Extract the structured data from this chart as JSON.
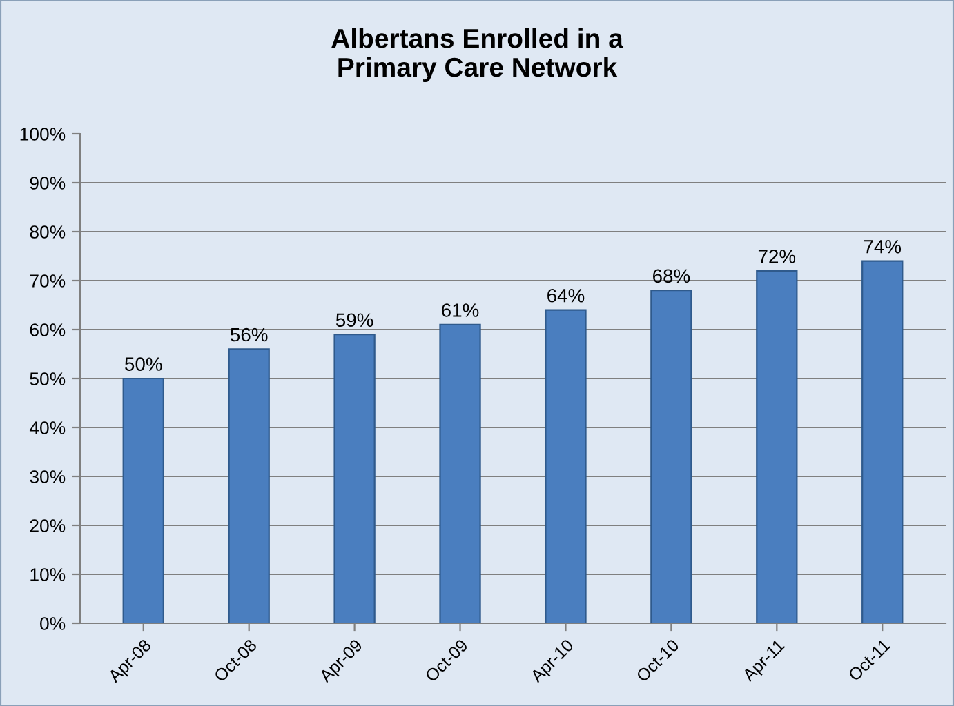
{
  "chart_data": {
    "type": "bar",
    "title": "Albertans Enrolled in a\nPrimary Care Network",
    "categories": [
      "Apr-08",
      "Oct-08",
      "Apr-09",
      "Oct-09",
      "Apr-10",
      "Oct-10",
      "Apr-11",
      "Oct-11"
    ],
    "values": [
      50,
      56,
      59,
      61,
      64,
      68,
      72,
      74
    ],
    "value_labels": [
      "50%",
      "56%",
      "59%",
      "61%",
      "64%",
      "68%",
      "72%",
      "74%"
    ],
    "color": "#4a7ebf",
    "ylim": [
      0,
      100
    ],
    "yticks": [
      {
        "value": 0,
        "label": "0%"
      },
      {
        "value": 10,
        "label": "10%"
      },
      {
        "value": 20,
        "label": "20%"
      },
      {
        "value": 30,
        "label": "30%"
      },
      {
        "value": 40,
        "label": "40%"
      },
      {
        "value": 50,
        "label": "50%"
      },
      {
        "value": 60,
        "label": "60%"
      },
      {
        "value": 70,
        "label": "70%"
      },
      {
        "value": 80,
        "label": "80%"
      },
      {
        "value": 90,
        "label": "90%"
      },
      {
        "value": 100,
        "label": "100%"
      }
    ],
    "grid": "y",
    "legend": false
  }
}
